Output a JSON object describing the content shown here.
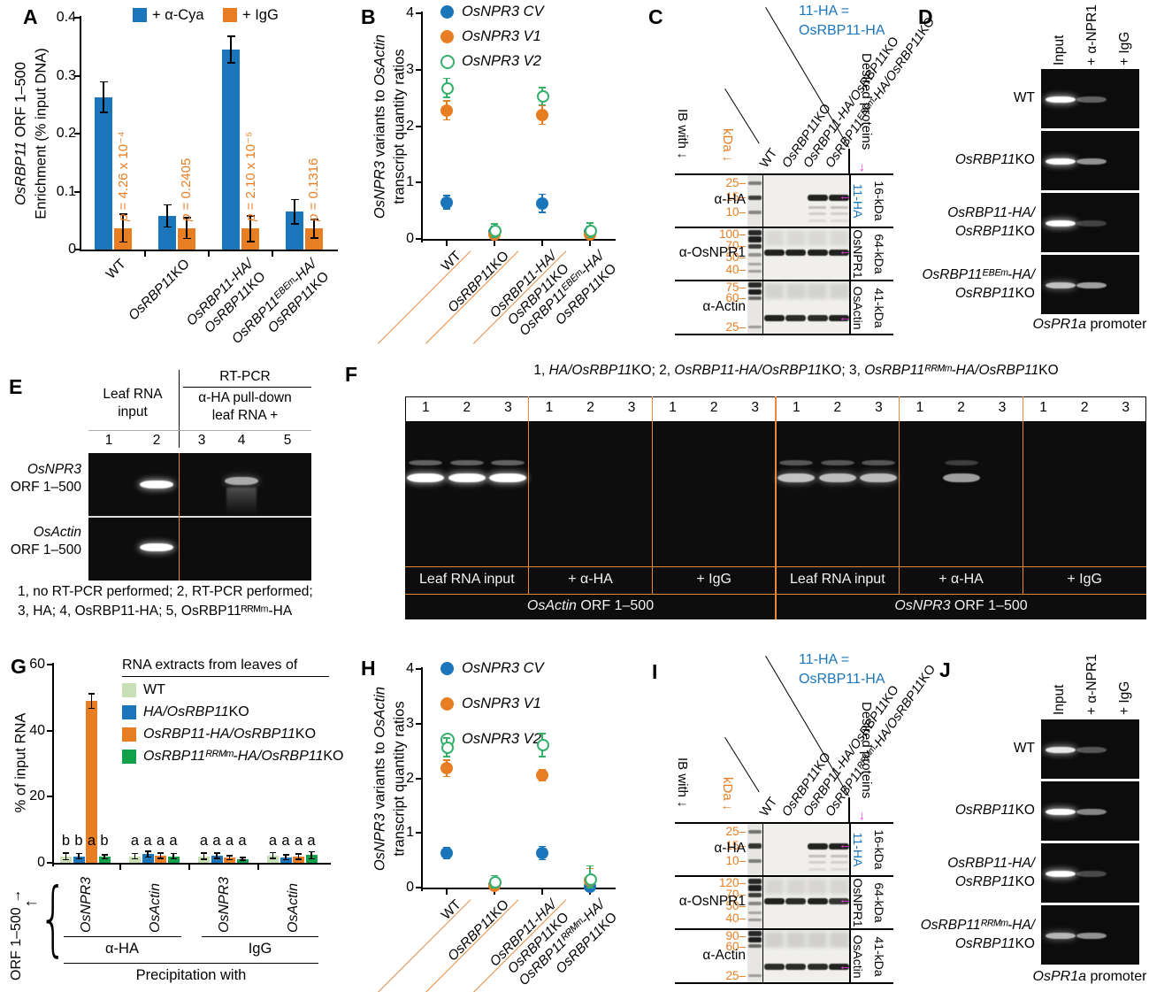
{
  "panels": {
    "a": {
      "label": "A"
    },
    "b": {
      "label": "B"
    },
    "c": {
      "label": "C"
    },
    "d": {
      "label": "D"
    },
    "e": {
      "label": "E"
    },
    "f": {
      "label": "F"
    },
    "g": {
      "label": "G"
    },
    "h": {
      "label": "H"
    },
    "i": {
      "label": "I"
    },
    "j": {
      "label": "J"
    }
  },
  "colors": {
    "blue": "#1b75bb",
    "orange": "#e87e23",
    "orange_line": "#e8893a",
    "light_green": "#c9dfb6",
    "green": "#13a04b",
    "open_green": "#35b06b",
    "magenta": "#e83adf",
    "p_text": "#e87e23",
    "kda_text": "#e87e23",
    "note_blue": "#1b75bb"
  },
  "chart_data": [
    {
      "id": "A",
      "type": "bar",
      "ylabel_lines": [
        "*OsRBP11* ORF 1–500",
        "Enrichment (% input DNA)"
      ],
      "ylim": [
        0,
        0.4
      ],
      "yticks": [
        "0",
        "0.1",
        "0.2",
        "0.3",
        "0.4"
      ],
      "categories": [
        [
          "WT"
        ],
        [
          "*OsRBP11*KO"
        ],
        [
          "*OsRBP11-HA/*",
          "*OsRBP11*KO"
        ],
        [
          "*OsRBP11ᴱᴮᴱᵐ-HA/*",
          "*OsRBP11*KO"
        ]
      ],
      "series": [
        {
          "name": "+ α-Cya",
          "color": "#1b75bb",
          "values": [
            0.263,
            0.058,
            0.345,
            0.065
          ],
          "errors": [
            0.026,
            0.019,
            0.023,
            0.021
          ]
        },
        {
          "name": "+ IgG",
          "color": "#e87e23",
          "values": [
            0.037,
            0.037,
            0.036,
            0.036
          ],
          "errors": [
            0.024,
            0.018,
            0.022,
            0.016
          ]
        }
      ],
      "p_values": [
        "*p* = 4.26 x 10⁻⁴",
        "*p* = 0.2405",
        "*p* = 2.10 x 10⁻⁵",
        "*p* = 0.1316"
      ]
    },
    {
      "id": "B",
      "type": "scatter",
      "ylabel_lines": [
        "*OsNPR3* variants to *OsActin*",
        "transcript quantity ratios"
      ],
      "ylim": [
        0,
        4
      ],
      "yticks": [
        "0",
        "1",
        "2",
        "3",
        "4"
      ],
      "categories": [
        [
          "WT"
        ],
        [
          "*OsRBP11*KO"
        ],
        [
          "*OsRBP11-HA/*",
          "*OsRBP11*KO"
        ],
        [
          "*OsRBP11ᴱᴮᴱᵐ-HA/*",
          "*OsRBP11*KO"
        ]
      ],
      "series": [
        {
          "name": "*OsNPR3 CV*",
          "color": "#1b75bb",
          "open": false,
          "values": [
            0.65,
            0.13,
            0.63,
            0.12
          ],
          "errors": [
            0.12,
            0.1,
            0.16,
            0.1
          ]
        },
        {
          "name": "*OsNPR3 V1*",
          "color": "#e87e23",
          "open": false,
          "values": [
            2.28,
            0.08,
            2.2,
            0.08
          ],
          "errors": [
            0.17,
            0.08,
            0.17,
            0.07
          ]
        },
        {
          "name": "*OsNPR3 V2*",
          "color": "#35b06b",
          "open": true,
          "values": [
            2.68,
            0.15,
            2.53,
            0.15
          ],
          "errors": [
            0.17,
            0.12,
            0.15,
            0.13
          ]
        }
      ]
    },
    {
      "id": "G",
      "type": "bar",
      "ylabel": "% of input RNA",
      "ylim": [
        0,
        60
      ],
      "yticks": [
        "0",
        "20",
        "40",
        "60"
      ],
      "legend_title": "RNA extracts from leaves of",
      "legend": [
        {
          "name": "WT",
          "color": "#c9dfb6"
        },
        {
          "name": "*HA/OsRBP11*KO",
          "color": "#1b75bb"
        },
        {
          "name": "*OsRBP11-HA/OsRBP11*KO",
          "color": "#e87e23"
        },
        {
          "name": "*OsRBP11ᴿᴿᴹᵐ-HA/OsRBP11*KO",
          "color": "#13a04b"
        }
      ],
      "groups": [
        {
          "gene": "*OsNPR3*",
          "values": [
            2.0,
            2.0,
            49.0,
            1.8
          ],
          "errors": [
            1.0,
            0.8,
            2.2,
            0.6
          ],
          "letters": [
            "b",
            "b",
            "a",
            "b"
          ]
        },
        {
          "gene": "*OsActin*",
          "values": [
            2.0,
            2.6,
            2.1,
            2.0
          ],
          "errors": [
            0.8,
            0.9,
            0.8,
            0.8
          ],
          "letters": [
            "a",
            "a",
            "a",
            "a"
          ]
        },
        {
          "gene": "*OsNPR3*",
          "values": [
            2.0,
            2.2,
            1.5,
            1.2
          ],
          "errors": [
            0.9,
            0.8,
            0.6,
            0.4
          ],
          "letters": [
            "a",
            "a",
            "a",
            "a"
          ]
        },
        {
          "gene": "*OsActin*",
          "values": [
            2.2,
            1.7,
            1.9,
            2.3
          ],
          "errors": [
            0.9,
            0.7,
            0.8,
            1.1
          ],
          "letters": [
            "a",
            "a",
            "a",
            "a"
          ]
        }
      ],
      "precip_groups": [
        "α-HA",
        "IgG"
      ],
      "precip_label": "Precipitation with",
      "orf_label": "ORF 1–500 →",
      "arrow_left": "←",
      "brace": "{"
    },
    {
      "id": "H",
      "type": "scatter",
      "ylabel_lines": [
        "*OsNPR3* variants to *OsActin*",
        "transcript quantity ratios"
      ],
      "ylim": [
        0,
        4
      ],
      "yticks": [
        "0",
        "1",
        "2",
        "3",
        "4"
      ],
      "categories": [
        [
          "WT"
        ],
        [
          "*OsRBP11*KO"
        ],
        [
          "*OsRBP11-HA/*",
          "*OsRBP11*KO"
        ],
        [
          "*OsRBP11ᴿᴿᴹᵐ-HA/*",
          "*OsRBP11*KO"
        ]
      ],
      "series": [
        {
          "name": "*OsNPR3 CV*",
          "color": "#1b75bb",
          "open": false,
          "values": [
            0.63,
            0.05,
            0.63,
            0.02
          ],
          "errors": [
            0.1,
            0.08,
            0.12,
            0.06
          ]
        },
        {
          "name": "*OsNPR3 V1*",
          "color": "#e87e23",
          "open": false,
          "values": [
            2.18,
            0.04,
            2.06,
            0.13
          ],
          "errors": [
            0.15,
            0.05,
            0.1,
            0.22
          ]
        },
        {
          "name": "*OsNPR3 V2*",
          "color": "#35b06b",
          "open": true,
          "values": [
            2.57,
            0.1,
            2.61,
            0.15
          ],
          "errors": [
            0.17,
            0.12,
            0.21,
            0.25
          ]
        }
      ]
    }
  ],
  "panelC": {
    "note_lines": [
      "11-HA =",
      "OsRBP11-HA"
    ],
    "ib_with": "IB with ↓",
    "kda_label": "kDa ↓",
    "desired": "Desired proteins",
    "desired_arrow": "↓",
    "band_arrow": "←",
    "lanes": [
      "WT",
      "*OsRBP11*KO",
      "*OsRBP11-HA/OsRBP11*KO",
      "*OsRBP11ᴱᴮᴱᵐ-HA/OsRBP11*KO"
    ],
    "blots": [
      {
        "antibody": "α-HA",
        "markers": [
          {
            "kda": "25",
            "rel": 10
          },
          {
            "kda": "15",
            "rel": 26
          },
          {
            "kda": "10",
            "rel": 43
          }
        ],
        "size_label": "16-kDa",
        "protein_label": "11-HA",
        "protein_blue": true,
        "band_rel": 26,
        "bands": [
          0,
          0,
          0.95,
          0.95
        ],
        "smear_under": true,
        "marker_bands": [
          [
            10,
            0.5,
            4
          ],
          [
            26,
            0.8,
            5
          ],
          [
            43,
            0.45,
            4
          ]
        ],
        "lane_smear_top": 0
      },
      {
        "antibody": "α-OsNPR1",
        "markers": [
          {
            "kda": "100",
            "rel": 8
          },
          {
            "kda": "70",
            "rel": 21
          },
          {
            "kda": "50",
            "rel": 34
          },
          {
            "kda": "40",
            "rel": 48
          }
        ],
        "size_label": "64-kDa",
        "protein_label": "OsNPR1",
        "protein_blue": false,
        "band_rel": 28,
        "bands": [
          0.95,
          0.95,
          0.95,
          0.95
        ],
        "smear_under": false,
        "marker_bands": [
          [
            6,
            0.9,
            6
          ],
          [
            13,
            0.95,
            7
          ],
          [
            21,
            0.8,
            5
          ],
          [
            31,
            0.4,
            4
          ],
          [
            41,
            0.3,
            3
          ],
          [
            49,
            0.35,
            3
          ]
        ],
        "lane_smear_top": 0.14
      },
      {
        "antibody": "α-Actin",
        "markers": [
          {
            "kda": "75",
            "rel": 8
          },
          {
            "kda": "60",
            "rel": 20
          },
          {
            "kda": "25",
            "rel": 52
          }
        ],
        "size_label": "41-kDa",
        "protein_label": "OsActin",
        "protein_blue": false,
        "band_rel": 42,
        "bands": [
          0.95,
          0.9,
          0.9,
          0.95
        ],
        "smear_under": false,
        "marker_bands": [
          [
            5,
            0.9,
            6
          ],
          [
            13,
            0.95,
            6
          ],
          [
            20,
            0.6,
            4
          ],
          [
            52,
            0.35,
            3
          ]
        ],
        "lane_smear_top": 0.18
      }
    ]
  },
  "panelI": {
    "note_lines": [
      "11-HA =",
      "OsRBP11-HA"
    ],
    "ib_with": "IB with ↓",
    "kda_label": "kDa ↓",
    "desired": "Desired proteins",
    "desired_arrow": "↓",
    "band_arrow": "←",
    "lanes": [
      "WT",
      "*OsRBP11*KO",
      "*OsRBP11-HA/OsRBP11*KO",
      "*OsRBP11ᴿᴿᴹᵐ-HA/OsRBP11*KO"
    ],
    "blots": [
      {
        "antibody": "α-HA",
        "markers": [
          {
            "kda": "25",
            "rel": 10
          },
          {
            "kda": "15",
            "rel": 26
          },
          {
            "kda": "10",
            "rel": 43
          }
        ],
        "size_label": "16-kDa",
        "protein_label": "11-HA",
        "protein_blue": true,
        "band_rel": 26,
        "bands": [
          0,
          0,
          0.95,
          0.95
        ],
        "smear_under": true,
        "marker_bands": [
          [
            10,
            0.55,
            4
          ],
          [
            26,
            0.85,
            6
          ],
          [
            43,
            0.5,
            4
          ]
        ],
        "lane_smear_top": 0
      },
      {
        "antibody": "α-OsNPR1",
        "markers": [
          {
            "kda": "120",
            "rel": 8
          },
          {
            "kda": "70",
            "rel": 21
          },
          {
            "kda": "50",
            "rel": 34
          },
          {
            "kda": "40",
            "rel": 48
          }
        ],
        "size_label": "64-kDa",
        "protein_label": "OsNPR1",
        "protein_blue": false,
        "band_rel": 28,
        "bands": [
          0.95,
          0.9,
          0.95,
          0.85
        ],
        "smear_under": false,
        "marker_bands": [
          [
            6,
            0.9,
            6
          ],
          [
            13,
            0.95,
            7
          ],
          [
            21,
            0.8,
            5
          ],
          [
            31,
            0.45,
            4
          ],
          [
            41,
            0.3,
            3
          ],
          [
            49,
            0.35,
            3
          ]
        ],
        "lane_smear_top": 0.16
      },
      {
        "antibody": "α-Actin",
        "markers": [
          {
            "kda": "90",
            "rel": 8
          },
          {
            "kda": "60",
            "rel": 20
          },
          {
            "kda": "25",
            "rel": 52
          }
        ],
        "size_label": "41-kDa",
        "protein_label": "OsActin",
        "protein_blue": false,
        "band_rel": 42,
        "bands": [
          0.9,
          0.9,
          0.9,
          0.95
        ],
        "smear_under": false,
        "marker_bands": [
          [
            5,
            0.9,
            6
          ],
          [
            12,
            0.95,
            6
          ],
          [
            19,
            0.6,
            4
          ],
          [
            52,
            0.35,
            3
          ]
        ],
        "lane_smear_top": 0.2
      }
    ]
  },
  "panelD": {
    "columns": [
      "Input",
      "+ α-NPR1",
      "+ IgG"
    ],
    "rows": [
      {
        "label_lines": [
          "WT"
        ],
        "bands": [
          1.0,
          0.35,
          0
        ]
      },
      {
        "label_lines": [
          "*OsRBP11*KO"
        ],
        "bands": [
          1.0,
          0.55,
          0
        ]
      },
      {
        "label_lines": [
          "*OsRBP11-HA/*",
          "*OsRBP11*KO"
        ],
        "bands": [
          1.0,
          0.22,
          0
        ]
      },
      {
        "label_lines": [
          "*OsRBP11ᴱᴮᴱᵐ-HA/*",
          "*OsRBP11*KO"
        ],
        "bands": [
          0.75,
          0.6,
          0
        ]
      }
    ],
    "caption": "*OsPR1a* promoter"
  },
  "panelJ": {
    "columns": [
      "Input",
      "+ α-NPR1",
      "+ IgG"
    ],
    "rows": [
      {
        "label_lines": [
          "WT"
        ],
        "bands": [
          0.9,
          0.3,
          0
        ]
      },
      {
        "label_lines": [
          "*OsRBP11*KO"
        ],
        "bands": [
          1.0,
          0.5,
          0
        ]
      },
      {
        "label_lines": [
          "*OsRBP11-HA/*",
          "*OsRBP11*KO"
        ],
        "bands": [
          1.0,
          0.25,
          0
        ]
      },
      {
        "label_lines": [
          "*OsRBP11ᴿᴿᴹᵐ-HA/*",
          "*OsRBP11*KO"
        ],
        "bands": [
          0.7,
          0.55,
          0
        ]
      }
    ],
    "caption": "*OsPR1a* promoter"
  },
  "panelE": {
    "left_header_lines": [
      "Leaf RNA",
      "input"
    ],
    "rtpcr": "RT-PCR",
    "right_header_lines": [
      "α-HA pull-down",
      "leaf RNA +"
    ],
    "lane_numbers": [
      "1",
      "2",
      "3",
      "4",
      "5"
    ],
    "rows": [
      {
        "label_lines": [
          "*OsNPR3*",
          "ORF 1–500"
        ],
        "bands": [
          0,
          1.0,
          0,
          0.65,
          0
        ],
        "smear_lane": 3
      },
      {
        "label_lines": [
          "*OsActin*",
          "ORF 1–500"
        ],
        "bands": [
          0,
          1.0,
          0,
          0,
          0
        ],
        "smear_lane": -1
      }
    ],
    "caption_lines": [
      "1, no RT-PCR performed; 2, RT-PCR performed;",
      "3, HA; 4, OsRBP11-HA; 5, OsRBP11ᴿᴿᴹᵐ-HA"
    ]
  },
  "panelF": {
    "caption": "1, *HA/OsRBP11*KO; 2, *OsRBP11-HA/OsRBP11*KO; 3, *OsRBP11ᴿᴿᴹᵐ-HA/OsRBP11*KO",
    "lane_numbers": [
      "1",
      "2",
      "3"
    ],
    "sections": [
      {
        "treatment": "Leaf RNA input",
        "bands": [
          1.0,
          1.0,
          1.0
        ],
        "upper": 0.35
      },
      {
        "treatment": "+ α-HA",
        "bands": [
          0,
          0,
          0
        ],
        "upper": 0
      },
      {
        "treatment": "+ IgG",
        "bands": [
          0,
          0,
          0
        ],
        "upper": 0
      },
      {
        "treatment": "Leaf RNA input",
        "bands": [
          0.75,
          0.72,
          0.72
        ],
        "upper": 0.3
      },
      {
        "treatment": "+ α-HA",
        "bands": [
          0,
          0.6,
          0
        ],
        "upper": 0.2
      },
      {
        "treatment": "+ IgG",
        "bands": [
          0,
          0,
          0
        ],
        "upper": 0
      }
    ],
    "gene_labels": [
      "*OsActin* ORF 1–500",
      "*OsNPR3* ORF 1–500"
    ]
  }
}
